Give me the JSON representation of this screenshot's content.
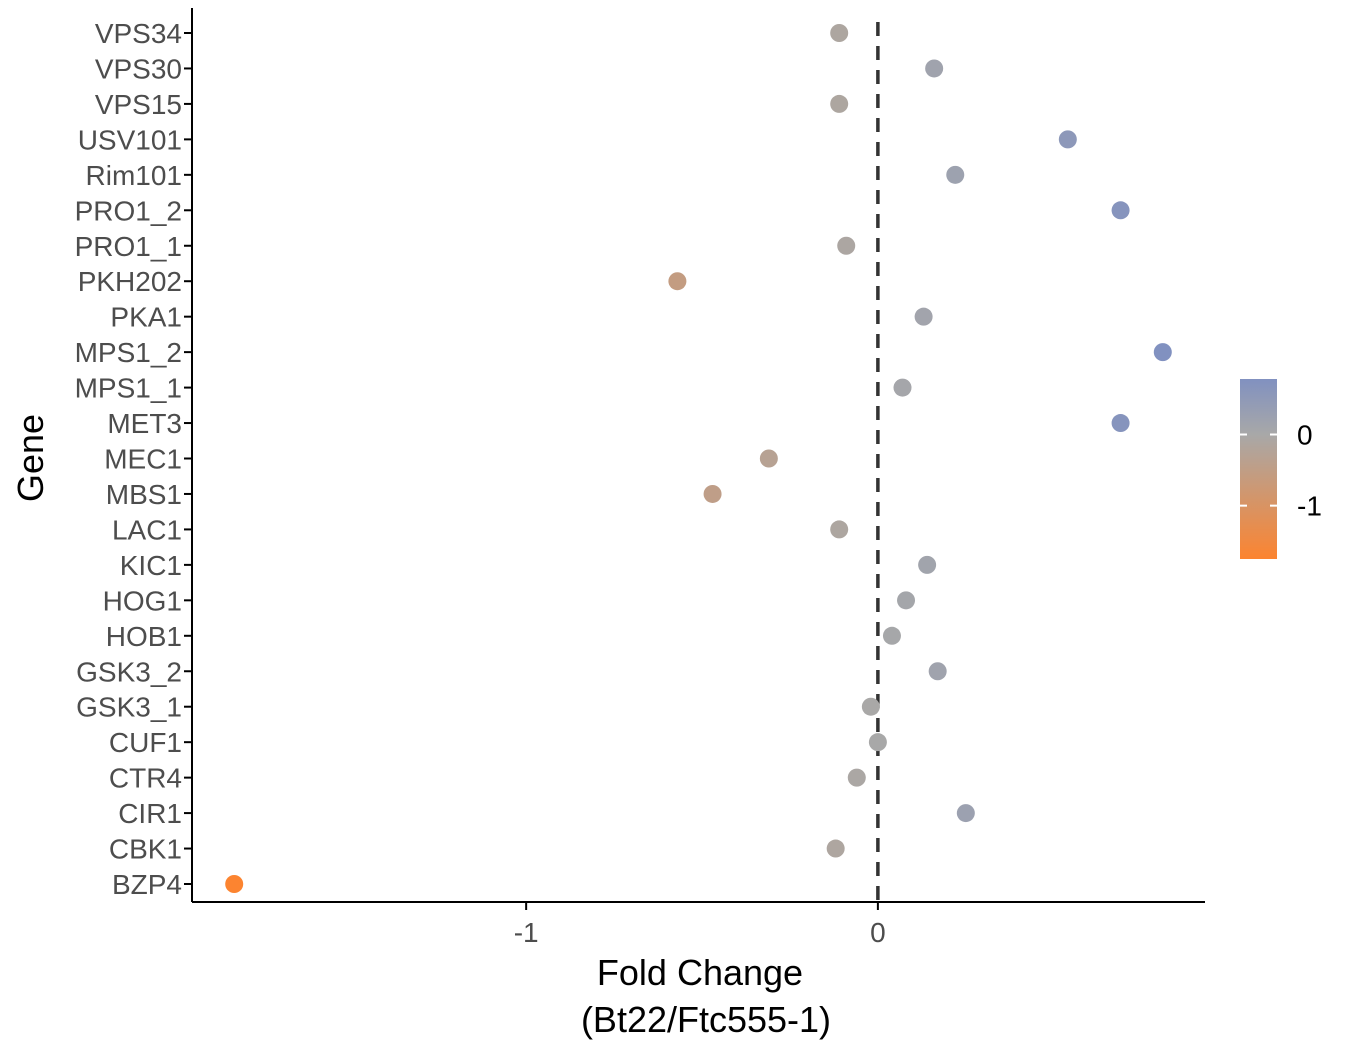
{
  "chart_data": {
    "type": "scatter",
    "xlabel_lines": [
      "Fold Change",
      "(Bt22/Ftc555-1)"
    ],
    "ylabel": "Gene",
    "xlim": [
      -1.95,
      0.93
    ],
    "x_ticks": [
      -1,
      0
    ],
    "x_tick_labels": [
      "-1",
      "0"
    ],
    "reference_line": {
      "x": 0,
      "style": "dashed"
    },
    "grid": false,
    "legend": {
      "placement": "right",
      "type": "colorbar",
      "range": [
        -1.75,
        0.78
      ],
      "ticks": [
        0,
        -1
      ],
      "tick_labels": [
        "0",
        "-1"
      ]
    },
    "colors": {
      "low": "#fc8430",
      "mid": "#a8a8a8",
      "high": "#8191c0",
      "reference_line": "#333333",
      "axis": "#000000"
    },
    "points": [
      {
        "gene": "VPS34",
        "value": -0.11
      },
      {
        "gene": "VPS30",
        "value": 0.16
      },
      {
        "gene": "VPS15",
        "value": -0.11
      },
      {
        "gene": "USV101",
        "value": 0.54
      },
      {
        "gene": "Rim101",
        "value": 0.22
      },
      {
        "gene": "PRO1_2",
        "value": 0.69
      },
      {
        "gene": "PRO1_1",
        "value": -0.09
      },
      {
        "gene": "PKH202",
        "value": -0.57
      },
      {
        "gene": "PKA1",
        "value": 0.13
      },
      {
        "gene": "MPS1_2",
        "value": 0.81
      },
      {
        "gene": "MPS1_1",
        "value": 0.07
      },
      {
        "gene": "MET3",
        "value": 0.69
      },
      {
        "gene": "MEC1",
        "value": -0.31
      },
      {
        "gene": "MBS1",
        "value": -0.47
      },
      {
        "gene": "LAC1",
        "value": -0.11
      },
      {
        "gene": "KIC1",
        "value": 0.14
      },
      {
        "gene": "HOG1",
        "value": 0.08
      },
      {
        "gene": "HOB1",
        "value": 0.04
      },
      {
        "gene": "GSK3_2",
        "value": 0.17
      },
      {
        "gene": "GSK3_1",
        "value": -0.02
      },
      {
        "gene": "CUF1",
        "value": 0.0
      },
      {
        "gene": "CTR4",
        "value": -0.06
      },
      {
        "gene": "CIR1",
        "value": 0.25
      },
      {
        "gene": "CBK1",
        "value": -0.12
      },
      {
        "gene": "BZP4",
        "value": -1.83
      }
    ]
  }
}
